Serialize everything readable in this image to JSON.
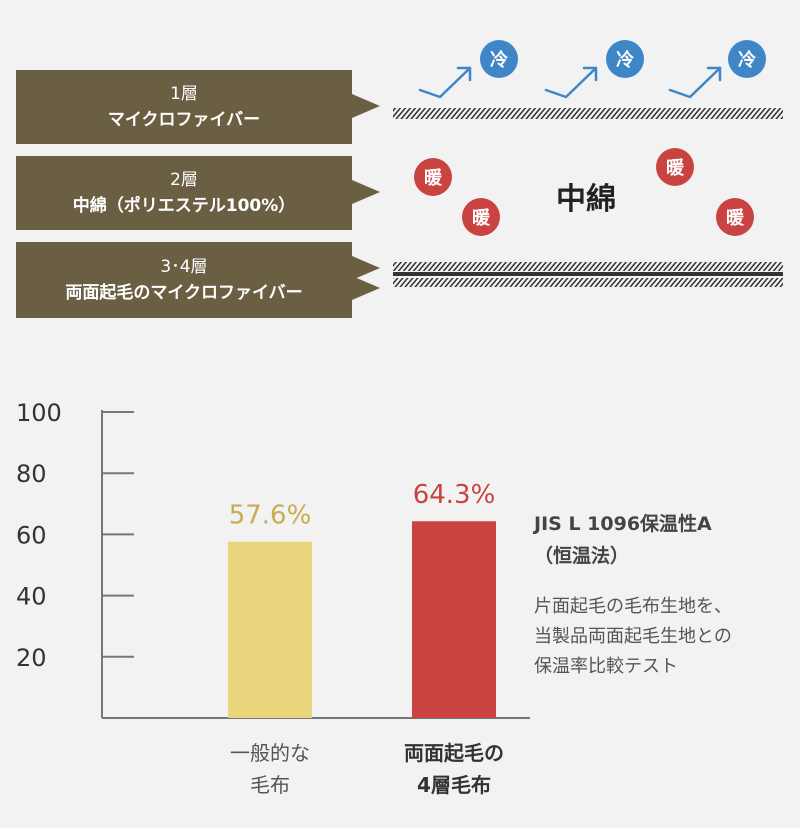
{
  "colors": {
    "label_bg": "#6b5f43",
    "cold": "#3f86c6",
    "warm": "#c94341",
    "bar_general": "#e9d57b",
    "bar_product": "#c94341",
    "value_general": "#c8ad4f",
    "value_product": "#c94341"
  },
  "layers": [
    {
      "line1": "1層",
      "line2": "マイクロファイバー"
    },
    {
      "line1": "2層",
      "line2": "中綿（ポリエステル100%）"
    },
    {
      "line1": "3･4層",
      "line2": "両面起毛のマイクロファイバー"
    }
  ],
  "diagram": {
    "cold_badge": "冷",
    "warm_badge": "暖",
    "center_label": "中綿"
  },
  "test": {
    "title_line1": "JIS L 1096保温性A",
    "title_line2": "（恒温法）",
    "desc_line1": "片面起毛の毛布生地を、",
    "desc_line2": "当製品両面起毛生地との",
    "desc_line3": "保温率比較テスト"
  },
  "chart_data": {
    "type": "bar",
    "categories": [
      [
        "一般的な",
        "毛布"
      ],
      [
        "両面起毛の",
        "4層毛布"
      ]
    ],
    "values": [
      57.6,
      64.3
    ],
    "value_labels": [
      "57.6%",
      "64.3%"
    ],
    "ylim": [
      0,
      100
    ],
    "yticks": [
      20,
      40,
      60,
      80,
      100
    ],
    "grid": false,
    "bar_colors": [
      "#e9d57b",
      "#c94341"
    ]
  }
}
